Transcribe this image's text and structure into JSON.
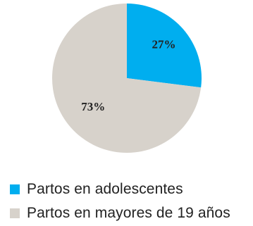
{
  "chart_data": {
    "type": "pie",
    "title": "",
    "slices": [
      {
        "label": "Partos en adolescentes",
        "value": 27,
        "display": "27%",
        "color": "#00AEEF"
      },
      {
        "label": "Partos en mayores de 19 años",
        "value": 73,
        "display": "73%",
        "color": "#D7D2CB"
      }
    ],
    "start_angle": "12 o'clock",
    "direction": "clockwise",
    "legend_placement": "bottom-left"
  }
}
